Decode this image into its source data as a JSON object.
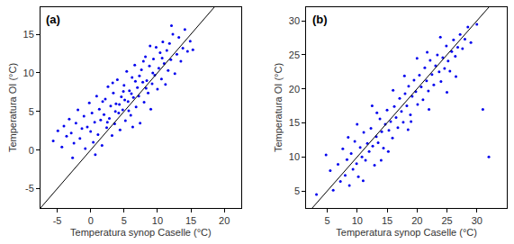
{
  "chart_data": [
    {
      "type": "scatter",
      "marker": "circle",
      "color": "#0000ee",
      "annotations": [
        {
          "text": "(a)"
        }
      ],
      "x_label": "Temperatura synop Caselle (°C)",
      "y_label": "Temperatura OI (°C)",
      "xlim": [
        -7.5,
        22.5
      ],
      "ylim": [
        -7.5,
        18.5
      ],
      "xticks": [
        -5,
        0,
        5,
        10,
        15,
        20
      ],
      "yticks": [
        -5,
        0,
        5,
        10,
        15
      ],
      "reference_line": {
        "x": [
          -7.5,
          22.5
        ],
        "y": [
          -7.5,
          22.5
        ]
      },
      "x": [
        -5.6,
        -4.9,
        -4.3,
        -4.0,
        -3.6,
        -3.2,
        -2.9,
        -2.5,
        -2.2,
        -1.9,
        -1.6,
        -1.3,
        -1.0,
        -0.8,
        -0.5,
        -0.2,
        0.0,
        0.2,
        0.4,
        0.6,
        0.9,
        1.1,
        1.3,
        1.5,
        1.7,
        2.0,
        2.2,
        2.4,
        2.6,
        2.8,
        3.0,
        3.2,
        3.4,
        3.6,
        3.8,
        4.0,
        4.2,
        4.4,
        4.6,
        4.8,
        5.0,
        5.2,
        5.4,
        5.6,
        5.8,
        6.0,
        6.2,
        6.4,
        6.6,
        6.8,
        7.0,
        7.2,
        7.4,
        7.6,
        7.8,
        8.0,
        8.2,
        8.4,
        8.6,
        8.8,
        9.0,
        9.2,
        9.4,
        9.6,
        9.8,
        10.0,
        10.2,
        10.4,
        10.6,
        10.8,
        11.0,
        11.2,
        11.4,
        11.6,
        11.8,
        12.0,
        12.3,
        12.6,
        12.9,
        13.2,
        13.5,
        13.8,
        14.1,
        14.5,
        14.9,
        15.3,
        5.1,
        6.1,
        4.3,
        7.3,
        3.7,
        8.3,
        2.5,
        9.3,
        5.7,
        6.7,
        1.8,
        10.7,
        4.9,
        7.9,
        3.3,
        6.3,
        8.9,
        0.7,
        12.1,
        -2.7
      ],
      "y": [
        1.2,
        2.5,
        0.4,
        3.1,
        1.8,
        4.0,
        2.2,
        0.9,
        3.5,
        5.2,
        1.5,
        2.8,
        4.4,
        0.2,
        3.0,
        6.1,
        2.4,
        4.8,
        1.0,
        3.6,
        7.0,
        2.0,
        5.3,
        3.9,
        0.6,
        4.6,
        6.6,
        2.9,
        8.2,
        4.1,
        5.7,
        1.9,
        7.4,
        3.4,
        6.0,
        9.1,
        4.8,
        2.6,
        6.9,
        5.2,
        8.4,
        3.8,
        10.2,
        6.3,
        7.7,
        4.5,
        9.4,
        6.8,
        11.0,
        5.6,
        8.1,
        7.0,
        3.5,
        10.4,
        8.8,
        6.2,
        12.1,
        9.0,
        7.4,
        10.9,
        5.3,
        8.6,
        11.8,
        9.7,
        13.3,
        7.9,
        10.6,
        12.6,
        9.2,
        14.0,
        11.2,
        8.5,
        12.9,
        10.3,
        13.8,
        11.7,
        15.0,
        9.9,
        12.4,
        14.6,
        11.5,
        13.2,
        15.6,
        12.8,
        14.1,
        13.0,
        6.5,
        7.3,
        5.9,
        9.6,
        5.0,
        8.0,
        3.6,
        10.0,
        5.1,
        8.9,
        6.3,
        11.9,
        7.6,
        11.5,
        8.7,
        3.0,
        13.5,
        -0.6,
        16.1,
        -1.0
      ]
    },
    {
      "type": "scatter",
      "marker": "circle",
      "color": "#0000ee",
      "annotations": [
        {
          "text": "(b)"
        }
      ],
      "x_label": "Temperatura synop Caselle (°C)",
      "y_label": "Temperatura OI (°C)",
      "xlim": [
        1.5,
        35
      ],
      "ylim": [
        2.5,
        32
      ],
      "xticks": [
        5,
        10,
        15,
        20,
        25,
        30
      ],
      "yticks": [
        5,
        10,
        15,
        20,
        25,
        30
      ],
      "reference_line": {
        "x": [
          1.5,
          35
        ],
        "y": [
          1.5,
          35
        ]
      },
      "x": [
        3.2,
        4.8,
        6.0,
        6.8,
        7.2,
        7.6,
        8.0,
        8.3,
        8.7,
        9.0,
        9.3,
        9.6,
        9.9,
        10.2,
        10.5,
        10.8,
        11.1,
        11.4,
        11.7,
        12.0,
        12.3,
        12.6,
        12.9,
        13.2,
        13.5,
        13.8,
        14.1,
        14.4,
        14.7,
        15.0,
        15.3,
        15.6,
        15.9,
        16.2,
        16.5,
        16.8,
        17.1,
        17.4,
        17.7,
        18.0,
        18.3,
        18.6,
        18.9,
        19.2,
        19.5,
        19.8,
        20.1,
        20.4,
        20.7,
        21.0,
        21.3,
        21.6,
        21.9,
        22.2,
        22.5,
        22.8,
        23.1,
        23.4,
        23.7,
        24.0,
        24.3,
        24.6,
        24.9,
        25.2,
        25.5,
        25.8,
        26.1,
        26.4,
        26.8,
        27.2,
        27.6,
        28.0,
        28.5,
        29.0,
        30.0,
        31.0,
        32.0,
        12.5,
        14.0,
        16.0,
        18.5,
        20.0,
        22.0,
        10.0,
        15.2,
        25.0,
        8.5,
        17.9,
        21.7,
        11.0,
        13.3,
        19.0,
        23.9,
        26.5,
        5.5
      ],
      "y": [
        4.5,
        10.3,
        5.1,
        8.9,
        6.4,
        11.2,
        7.3,
        9.6,
        5.8,
        10.5,
        8.2,
        12.3,
        9.0,
        7.1,
        11.4,
        10.0,
        13.6,
        9.5,
        12.0,
        10.8,
        14.2,
        11.6,
        8.8,
        13.0,
        12.1,
        15.6,
        13.7,
        11.3,
        14.8,
        16.9,
        13.9,
        15.2,
        12.8,
        17.4,
        15.8,
        14.3,
        18.6,
        16.7,
        15.1,
        19.3,
        17.5,
        20.4,
        16.2,
        18.9,
        21.3,
        19.6,
        17.7,
        22.0,
        20.3,
        18.4,
        23.1,
        21.2,
        19.7,
        24.2,
        22.1,
        20.6,
        23.4,
        25.0,
        22.5,
        21.1,
        24.6,
        23.0,
        26.3,
        24.1,
        22.6,
        25.5,
        27.2,
        24.8,
        26.1,
        28.0,
        25.9,
        27.3,
        29.1,
        26.8,
        29.5,
        17.0,
        10.0,
        17.5,
        9.5,
        19.8,
        14.0,
        24.5,
        17.0,
        14.8,
        10.8,
        19.5,
        12.9,
        21.9,
        25.4,
        6.5,
        16.5,
        15.2,
        27.6,
        21.8,
        8.0
      ]
    }
  ]
}
